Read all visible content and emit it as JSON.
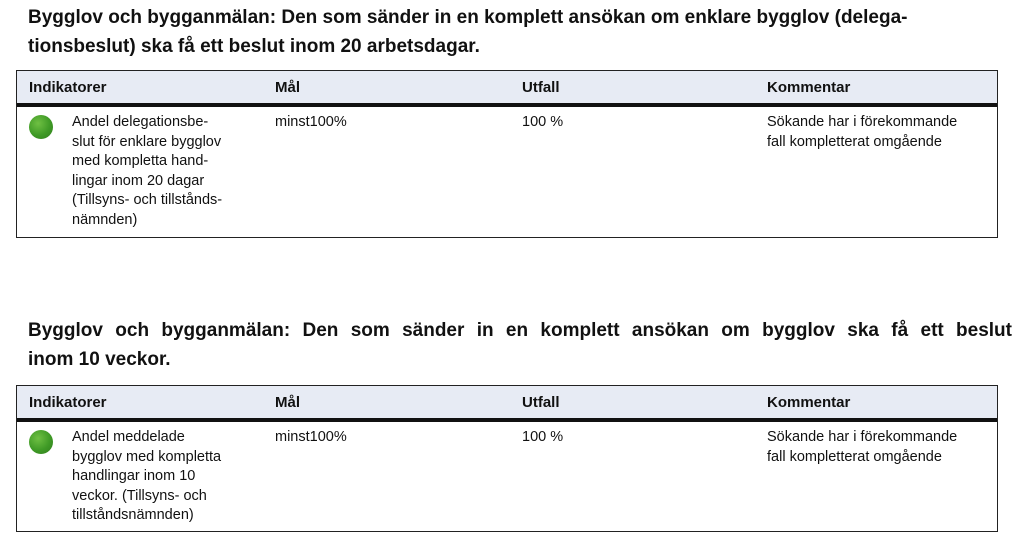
{
  "section1": {
    "heading_lines": [
      "Bygglov och bygganmälan: Den som sänder in en komplett ansökan om enklare bygglov (delega-",
      "tionsbeslut) ska få ett beslut inom 20 arbetsdagar."
    ],
    "headers": [
      "Indikatorer",
      "Mål",
      "Utfall",
      "Kommentar"
    ],
    "row": {
      "status_color": "#3f9a26",
      "indicator_lines": [
        "Andel delegationsbe-",
        "slut för enklare bygglov",
        "med kompletta hand-",
        "lingar inom 20 dagar",
        "(Tillsyns- och tillstånds-",
        "nämnden)"
      ],
      "goal": "minst100%",
      "outcome": "100 %",
      "comment_lines": [
        "Sökande har i förekommande",
        "fall kompletterat omgående"
      ]
    }
  },
  "section2": {
    "heading_lines": [
      "Bygglov och bygganmälan: Den som sänder in en komplett ansökan om bygglov ska få ett beslut",
      "inom 10 veckor."
    ],
    "headers": [
      "Indikatorer",
      "Mål",
      "Utfall",
      "Kommentar"
    ],
    "row": {
      "status_color": "#3f9a26",
      "indicator_lines": [
        "Andel meddelade",
        "bygglov med kompletta",
        "handlingar inom 10",
        "veckor.  (Tillsyns- och",
        "tillståndsnämnden)"
      ],
      "goal": "minst100%",
      "outcome": "100 %",
      "comment_lines": [
        "Sökande har i förekommande",
        "fall kompletterat omgående"
      ]
    }
  }
}
